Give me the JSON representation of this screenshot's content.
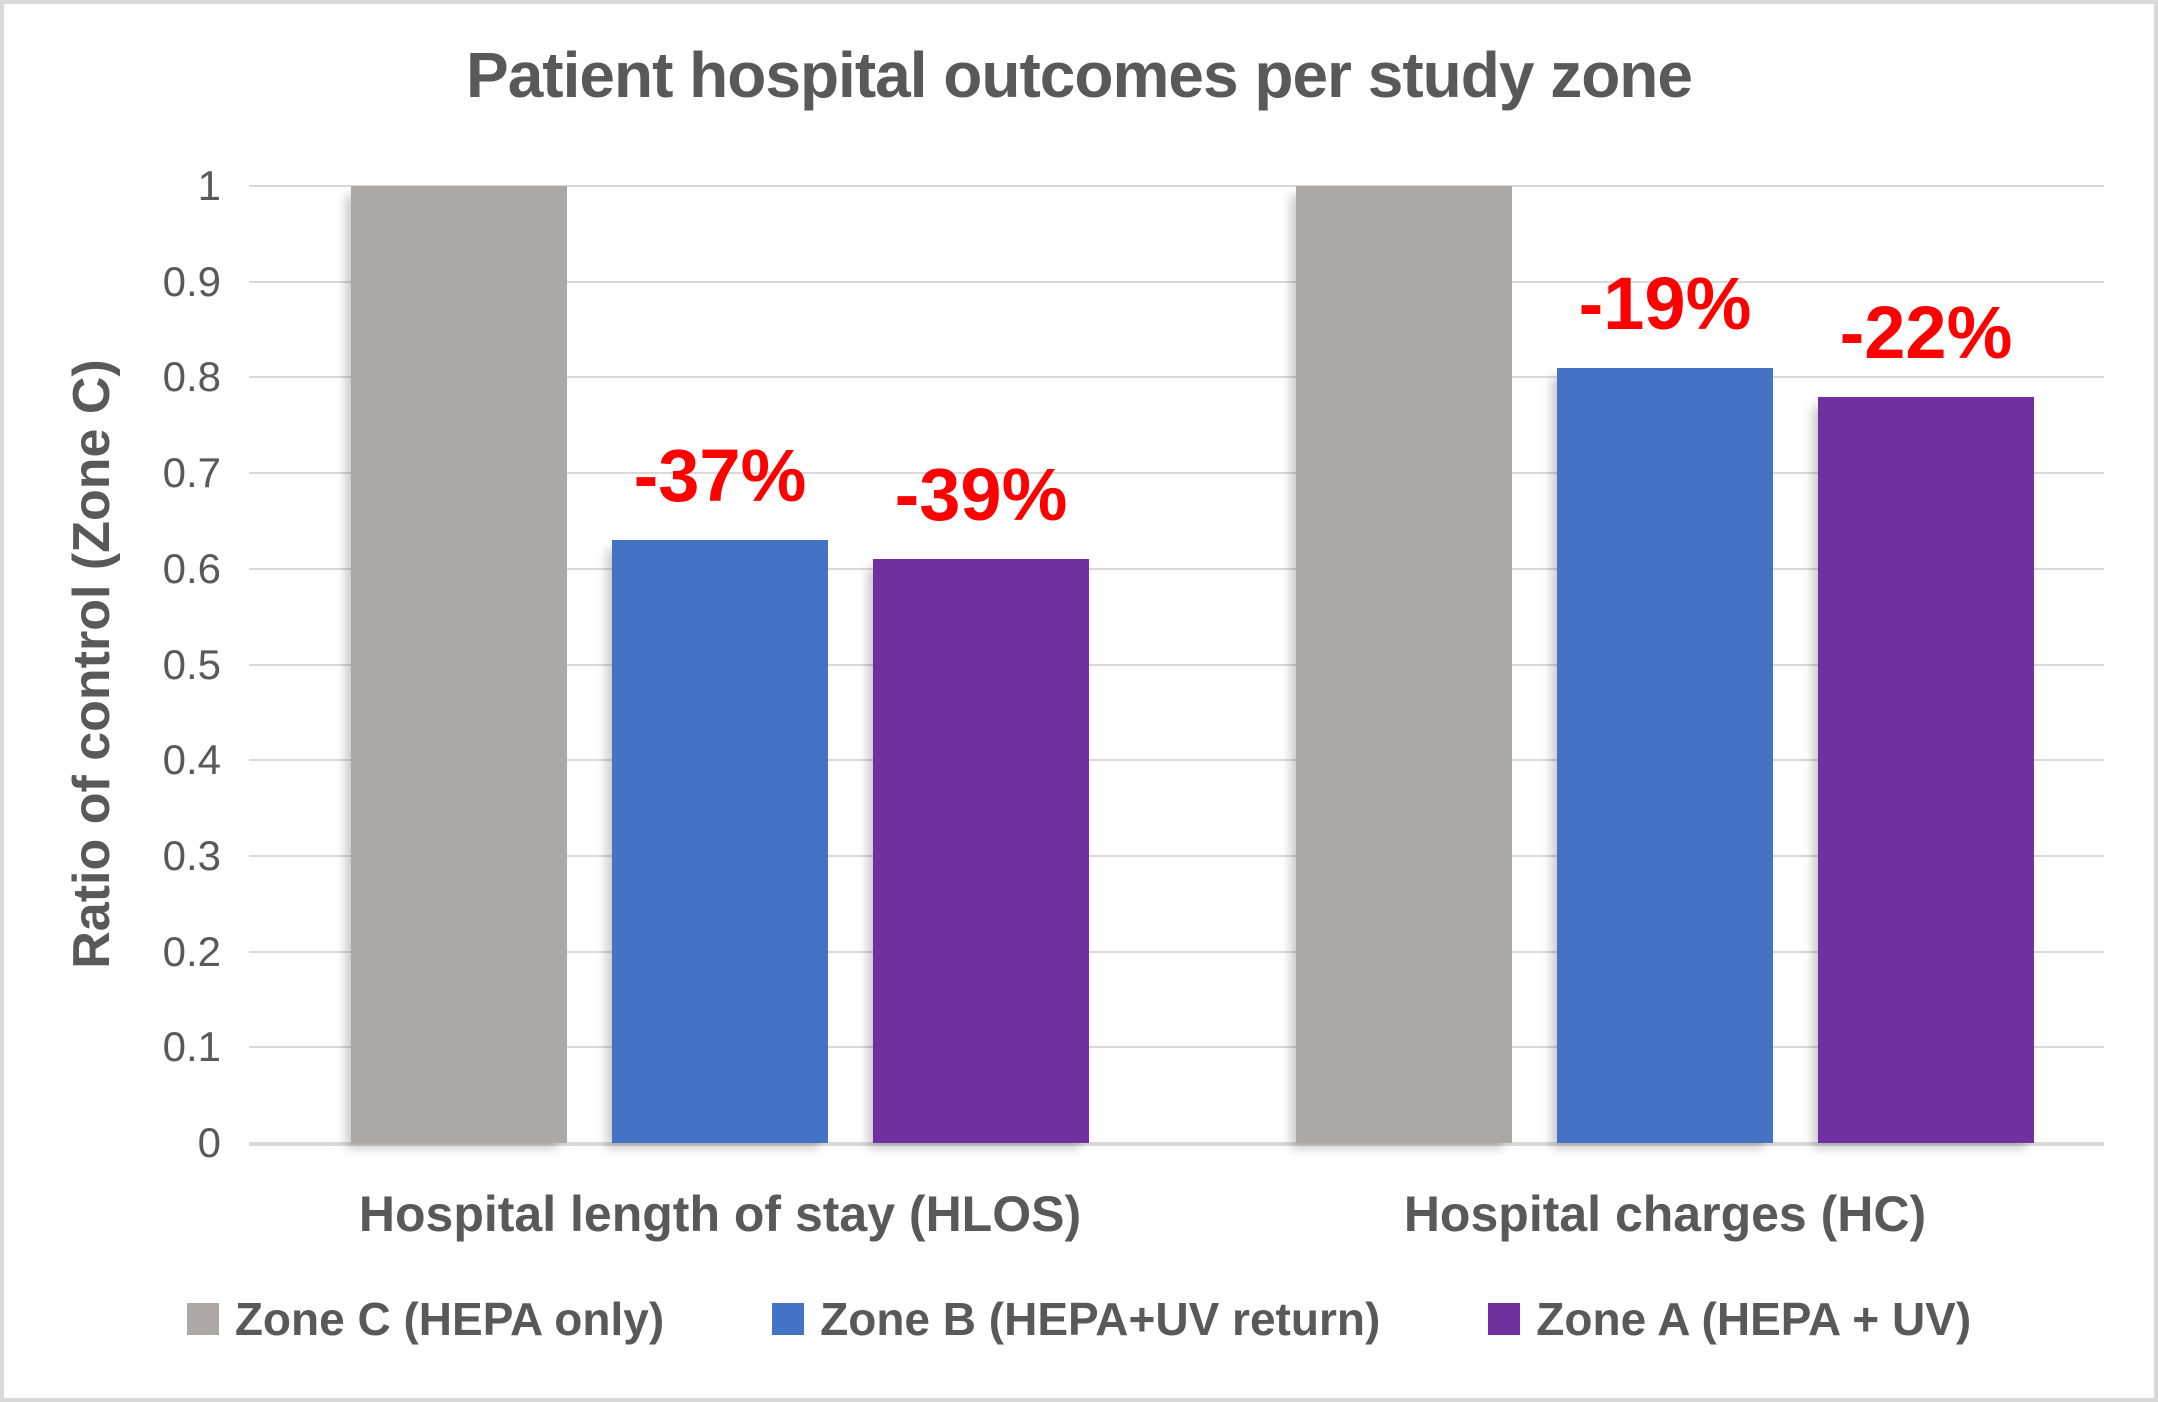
{
  "chart_data": {
    "type": "bar",
    "title": "Patient hospital outcomes per study zone",
    "xlabel": "",
    "ylabel": "Ratio of control (Zone C)",
    "categories": [
      "Hospital length of stay (HLOS)",
      "Hospital charges (HC)"
    ],
    "series": [
      {
        "name": "Zone C (HEPA only)",
        "color": "#ACA8A7",
        "values": [
          1.0,
          1.0
        ],
        "labels": [
          null,
          null
        ]
      },
      {
        "name": "Zone B (HEPA+UV return)",
        "color": "#4472C4",
        "values": [
          0.63,
          0.81
        ],
        "labels": [
          "-37%",
          "-19%"
        ]
      },
      {
        "name": "Zone A (HEPA + UV)",
        "color": "#7030A0",
        "values": [
          0.61,
          0.78
        ],
        "labels": [
          "-39%",
          "-22%"
        ]
      }
    ],
    "ylim": [
      0,
      1
    ],
    "yticks": [
      "1",
      "0.9",
      "0.8",
      "0.7",
      "0.6",
      "0.5",
      "0.4",
      "0.3",
      "0.2",
      "0.1",
      "0"
    ],
    "grid": true,
    "legend_position": "bottom",
    "value_label_color": "#FF0000",
    "text_color": "#595959",
    "gridline_color": "#D9D9D9"
  }
}
